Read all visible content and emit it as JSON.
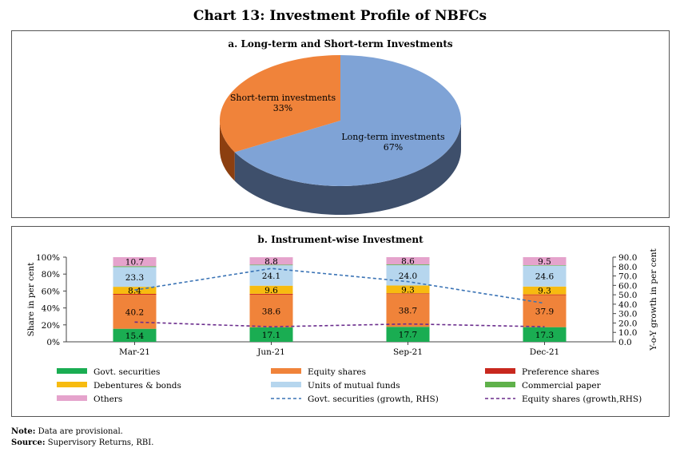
{
  "title": "Chart 13: Investment Profile of NBFCs",
  "note_label": "Note:",
  "note_text": "Data are provisional.",
  "source_label": "Source:",
  "source_text": "Supervisory Returns, RBI.",
  "colors": {
    "long_term": "#7fa3d6",
    "long_term_side": "#3e4f6b",
    "short_term": "#f0833a",
    "short_term_side": "#8c3f10"
  },
  "chart_data": [
    {
      "type": "pie",
      "title": "a. Long-term and Short-term Investments",
      "slices": [
        {
          "label": "Long-term investments",
          "value": 67,
          "display": "67%",
          "color": "#7fa3d6"
        },
        {
          "label": "Short-term investments",
          "value": 33,
          "display": "33%",
          "color": "#f0833a"
        }
      ]
    },
    {
      "type": "bar",
      "stacked": true,
      "title": "b. Instrument-wise Investment",
      "categories": [
        "Mar-21",
        "Jun-21",
        "Sep-21",
        "Dec-21"
      ],
      "ylabel": "Share in per cent",
      "y2label": "Y-o-Y growth in per cent",
      "ylim": [
        0,
        100
      ],
      "yticks": [
        "0%",
        "20%",
        "40%",
        "60%",
        "80%",
        "100%"
      ],
      "y2lim": [
        0,
        90
      ],
      "y2ticks": [
        "0.0",
        "10.0",
        "20.0",
        "30.0",
        "40.0",
        "50.0",
        "60.0",
        "70.0",
        "80.0",
        "90.0"
      ],
      "series": [
        {
          "name": "Govt. securities",
          "color": "#1aad52",
          "values": [
            15.4,
            17.1,
            17.7,
            17.3
          ],
          "labels": [
            "15.4",
            "17.1",
            "17.7",
            "17.3"
          ]
        },
        {
          "name": "Equity shares",
          "color": "#f0833a",
          "values": [
            40.2,
            38.6,
            38.7,
            37.9
          ],
          "labels": [
            "40.2",
            "38.6",
            "38.7",
            "37.9"
          ]
        },
        {
          "name": "Preference shares",
          "color": "#c8281e",
          "values": [
            1.0,
            1.0,
            0.8,
            0.8
          ],
          "labels": [
            "",
            "",
            "",
            ""
          ]
        },
        {
          "name": "Debentures & bonds",
          "color": "#f7bb10",
          "values": [
            8.4,
            9.6,
            9.3,
            9.3
          ],
          "labels": [
            "8.4",
            "9.6",
            "9.3",
            "9.3"
          ]
        },
        {
          "name": "Units of mutual funds",
          "color": "#b6d6ee",
          "values": [
            23.3,
            24.1,
            24.0,
            24.6
          ],
          "labels": [
            "23.3",
            "24.1",
            "24.0",
            "24.6"
          ]
        },
        {
          "name": "Commercial paper",
          "color": "#5fb14a",
          "values": [
            1.0,
            0.7,
            0.9,
            0.6
          ],
          "labels": [
            "",
            "",
            "",
            ""
          ]
        },
        {
          "name": "Others",
          "color": "#e5a3cc",
          "values": [
            10.7,
            8.8,
            8.6,
            9.5
          ],
          "labels": [
            "10.7",
            "8.8",
            "8.6",
            "9.5"
          ]
        }
      ],
      "lines": [
        {
          "name": "Govt. securities (growth, RHS)",
          "color": "#3a73b5",
          "dash": "4,3",
          "values": [
            55,
            78,
            64,
            41
          ]
        },
        {
          "name": "Equity shares (growth,RHS)",
          "color": "#6a2c8c",
          "dash": "4,3",
          "values": [
            21,
            16,
            19,
            16
          ]
        }
      ],
      "legend": "bottom"
    }
  ]
}
